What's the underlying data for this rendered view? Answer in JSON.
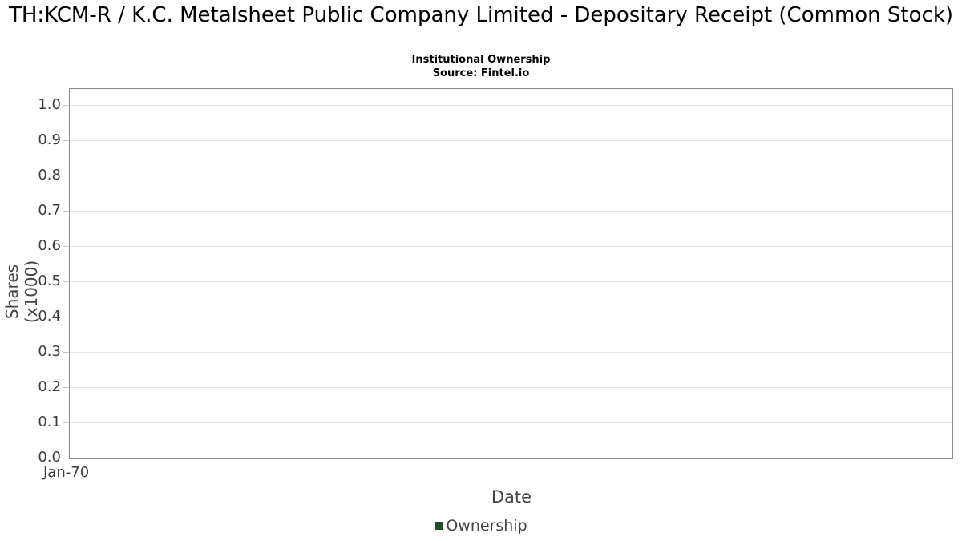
{
  "header": {
    "title": "TH:KCM-R / K.C. Metalsheet Public Company Limited - Depositary Receipt (Common Stock)",
    "subtitle": "Institutional Ownership",
    "source": "Source: Fintel.io"
  },
  "chart_data": {
    "type": "line",
    "title": "Institutional Ownership",
    "xlabel": "Date",
    "ylabel": "Shares (x1000)",
    "x_ticks": [
      "Jan-70"
    ],
    "y_ticks": [
      "0.0",
      "0.1",
      "0.2",
      "0.3",
      "0.4",
      "0.5",
      "0.6",
      "0.7",
      "0.8",
      "0.9",
      "1.0"
    ],
    "ylim": [
      0.0,
      1.05
    ],
    "grid": true,
    "legend_position": "bottom-center",
    "series": [
      {
        "name": "Ownership",
        "color": "#1e4e2c",
        "x": [],
        "values": []
      }
    ]
  },
  "colors": {
    "background": "#ffffff",
    "plot_border": "#8a8a8a",
    "gridline": "#e4e4e4",
    "tick_mark": "#c8c8c8",
    "axis_text": "#3d3d3d",
    "title_text": "#000000",
    "series_green": "#1e4e2c"
  }
}
